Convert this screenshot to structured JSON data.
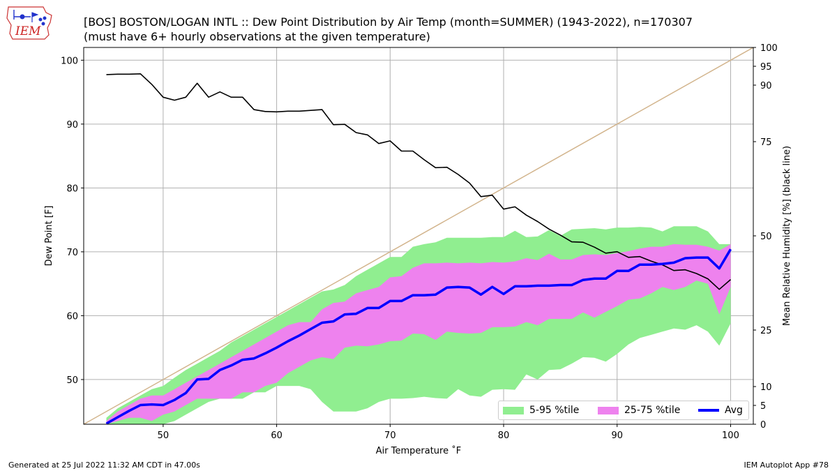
{
  "header": {
    "title_line1": "[BOS] BOSTON/LOGAN INTL :: Dew Point Distribution by Air Temp (month=SUMMER) (1943-2022), n=170307",
    "title_line2": "(must have 6+ hourly observations at the given temperature)",
    "logo_text": "IEM"
  },
  "footer": {
    "left": "Generated at 25 Jul 2022 11:32 AM CDT in 47.00s",
    "right": "IEM Autoplot App #78"
  },
  "colors": {
    "band_5_95": "#90ee90",
    "band_25_75": "#ee82ee",
    "avg": "#0000ff",
    "rh_line": "#000000",
    "diag": "#d2b48c",
    "grid": "#b0b0b0",
    "logo": "#cc2222",
    "logo_map": "#cc3333",
    "logo_icon": "#2233cc"
  },
  "chart_data": {
    "type": "area",
    "xlabel": "Air Temperature ˚F",
    "ylabel": "Dew Point [F]",
    "y2label": "Mean Relative Humidity [%] (black line)",
    "xlim": [
      43,
      102
    ],
    "ylim": [
      43,
      102
    ],
    "xticks": [
      50,
      60,
      70,
      80,
      90,
      100
    ],
    "yticks": [
      50,
      60,
      70,
      80,
      90,
      100
    ],
    "y2ticks": [
      0,
      5,
      10,
      25,
      50,
      75,
      90,
      95,
      100
    ],
    "grid": true,
    "legend_position": "lower-right",
    "legend": [
      "5-95 %tile",
      "25-75 %tile",
      "Avg"
    ],
    "x": [
      45,
      46,
      47,
      48,
      49,
      50,
      51,
      52,
      53,
      54,
      55,
      56,
      57,
      58,
      59,
      60,
      61,
      62,
      63,
      64,
      65,
      66,
      67,
      68,
      69,
      70,
      71,
      72,
      73,
      74,
      75,
      76,
      77,
      78,
      79,
      80,
      81,
      82,
      83,
      84,
      85,
      86,
      87,
      88,
      89,
      90,
      91,
      92,
      93,
      94,
      95,
      96,
      97,
      98,
      99,
      100
    ],
    "p05": [
      43,
      43,
      43,
      43,
      43,
      43,
      43.5,
      44.5,
      45.5,
      46.5,
      47,
      47,
      47,
      48,
      48,
      49,
      49,
      49,
      48.5,
      46.5,
      45,
      45,
      45,
      45.5,
      46.5,
      47,
      47,
      47.1,
      47.3,
      47.1,
      47,
      48.5,
      47.5,
      47.3,
      48.4,
      48.5,
      48.4,
      50.8,
      50,
      51.5,
      51.6,
      52.5,
      53.5,
      53.4,
      52.8,
      54,
      55.5,
      56.5,
      57,
      57.5,
      58,
      57.8,
      58.5,
      57.5,
      55.3,
      58.8
    ],
    "p95": [
      44,
      45.5,
      46.5,
      47.5,
      48.5,
      49,
      50.3,
      51.5,
      52.5,
      53.5,
      54.5,
      55.8,
      56.8,
      57.8,
      58.8,
      59.8,
      60.8,
      61.8,
      62.8,
      63.8,
      64.1,
      64.8,
      66.2,
      67.2,
      68.2,
      69.2,
      69.2,
      70.8,
      71.2,
      71.5,
      72.2,
      72.2,
      72.2,
      72.2,
      72.3,
      72.3,
      73.3,
      72.3,
      72.4,
      73.4,
      72.5,
      73.5,
      73.6,
      73.7,
      73.5,
      73.8,
      73.8,
      73.9,
      73.8,
      73.2,
      74,
      74,
      74,
      73.2,
      71.2,
      71.2
    ],
    "p25": [
      43,
      43.5,
      44,
      44,
      43.5,
      44.5,
      45,
      46,
      47,
      47,
      47,
      47,
      48,
      48,
      49,
      49.5,
      51,
      52,
      53,
      53.5,
      53.2,
      55,
      55.3,
      55.2,
      55.5,
      56,
      56.1,
      57.2,
      57.1,
      56.2,
      57.5,
      57.3,
      57.2,
      57.3,
      58.2,
      58.2,
      58.3,
      59,
      58.5,
      59.5,
      59.5,
      59.5,
      60.5,
      59.7,
      60.6,
      61.5,
      62.5,
      62.7,
      63.5,
      64.5,
      64,
      64.5,
      65.5,
      65,
      60.2,
      64.5
    ],
    "p75": [
      43.5,
      45,
      46,
      47,
      47.5,
      47.5,
      48.5,
      49.5,
      50.5,
      51.5,
      52.5,
      53.5,
      54.5,
      55.5,
      56.5,
      57.5,
      58.5,
      59,
      59,
      61,
      62,
      62.2,
      63.5,
      64,
      64.5,
      66,
      66.2,
      67.5,
      68.2,
      68.2,
      68.3,
      68.2,
      68.3,
      68.2,
      68.4,
      68.3,
      68.5,
      69,
      68.7,
      69.7,
      68.8,
      68.8,
      69.5,
      69.6,
      69.5,
      69.8,
      70.1,
      70.5,
      70.8,
      70.8,
      71.2,
      71.1,
      71.1,
      70.8,
      70.2,
      71.2
    ],
    "avg": [
      43.1,
      44.1,
      45.1,
      46,
      46.1,
      46,
      46.8,
      47.9,
      50,
      50.1,
      51.5,
      52.2,
      53.1,
      53.3,
      54.1,
      55,
      56,
      56.9,
      57.9,
      58.9,
      59.1,
      60.2,
      60.3,
      61.2,
      61.2,
      62.3,
      62.3,
      63.2,
      63.2,
      63.3,
      64.4,
      64.5,
      64.4,
      63.3,
      64.5,
      63.4,
      64.6,
      64.6,
      64.7,
      64.7,
      64.8,
      64.8,
      65.6,
      65.8,
      65.8,
      67,
      67,
      68,
      68,
      68.1,
      68.3,
      69,
      69.1,
      69.1,
      67.4,
      70.4
    ],
    "rh": [
      92.8,
      92.9,
      92.9,
      93,
      90.2,
      86.8,
      86,
      86.8,
      90.5,
      86.8,
      88.2,
      86.8,
      86.8,
      83.5,
      83,
      82.9,
      83.1,
      83.1,
      83.3,
      83.5,
      79.5,
      79.6,
      77.4,
      76.8,
      74.5,
      75.2,
      72.5,
      72.5,
      70.2,
      68.1,
      68.2,
      66.3,
      64,
      60.4,
      60.8,
      57.1,
      57.7,
      55.5,
      53.8,
      51.8,
      50.2,
      48.4,
      48.3,
      47,
      45.4,
      45.8,
      44.3,
      44.5,
      43.3,
      42.3,
      40.8,
      41,
      40,
      38.6,
      35.8,
      38.4
    ]
  }
}
